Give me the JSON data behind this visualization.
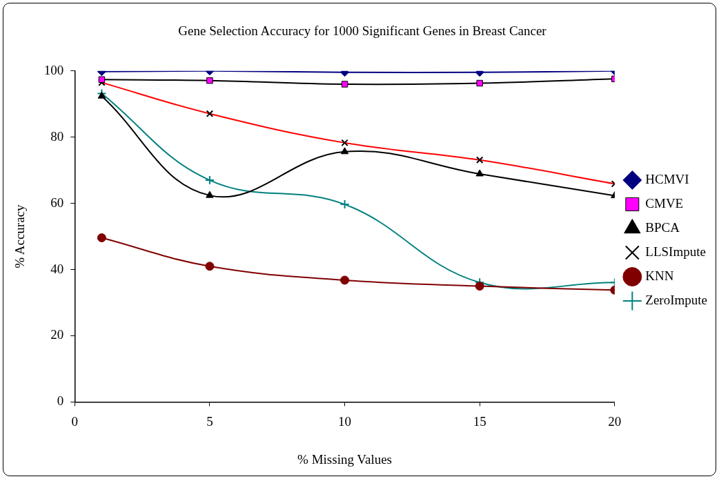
{
  "chart_data": {
    "type": "line",
    "title": "Gene Selection Accuracy for 1000 Significant Genes in Breast Cancer",
    "xlabel": "% Missing Values",
    "ylabel": "% Accuracy",
    "x": [
      1,
      5,
      10,
      15,
      20
    ],
    "series": [
      {
        "name": "HCMVI",
        "color": "#000080",
        "marker": "diamond",
        "values": [
          99.8,
          100,
          99.6,
          99.6,
          100
        ]
      },
      {
        "name": "CMVE",
        "color": "#ff00ff",
        "marker": "square",
        "values": [
          97.4,
          97.1,
          96.0,
          96.3,
          97.6
        ]
      },
      {
        "name": "BPCA",
        "color": "#000000",
        "marker": "triangle",
        "values": [
          92.4,
          62.4,
          75.6,
          68.9,
          62.3
        ]
      },
      {
        "name": "LLSImpute",
        "color": "#ff0000",
        "marker": "cross",
        "values": [
          96.5,
          87.1,
          78.3,
          73.1,
          65.9
        ]
      },
      {
        "name": "KNN",
        "color": "#800000",
        "marker": "circle",
        "values": [
          49.6,
          41.0,
          36.8,
          35.0,
          33.8
        ]
      },
      {
        "name": "ZeroImpute",
        "color": "#008080",
        "marker": "plus",
        "values": [
          93.2,
          67.0,
          59.7,
          36.1,
          36.1
        ]
      }
    ],
    "xlim": [
      0,
      20
    ],
    "xticks": [
      0,
      5,
      10,
      15,
      20
    ],
    "ylim": [
      0,
      100
    ],
    "yticks": [
      0,
      20,
      40,
      60,
      80,
      100
    ],
    "grid": false,
    "legend": "right",
    "line_style": "solid"
  }
}
